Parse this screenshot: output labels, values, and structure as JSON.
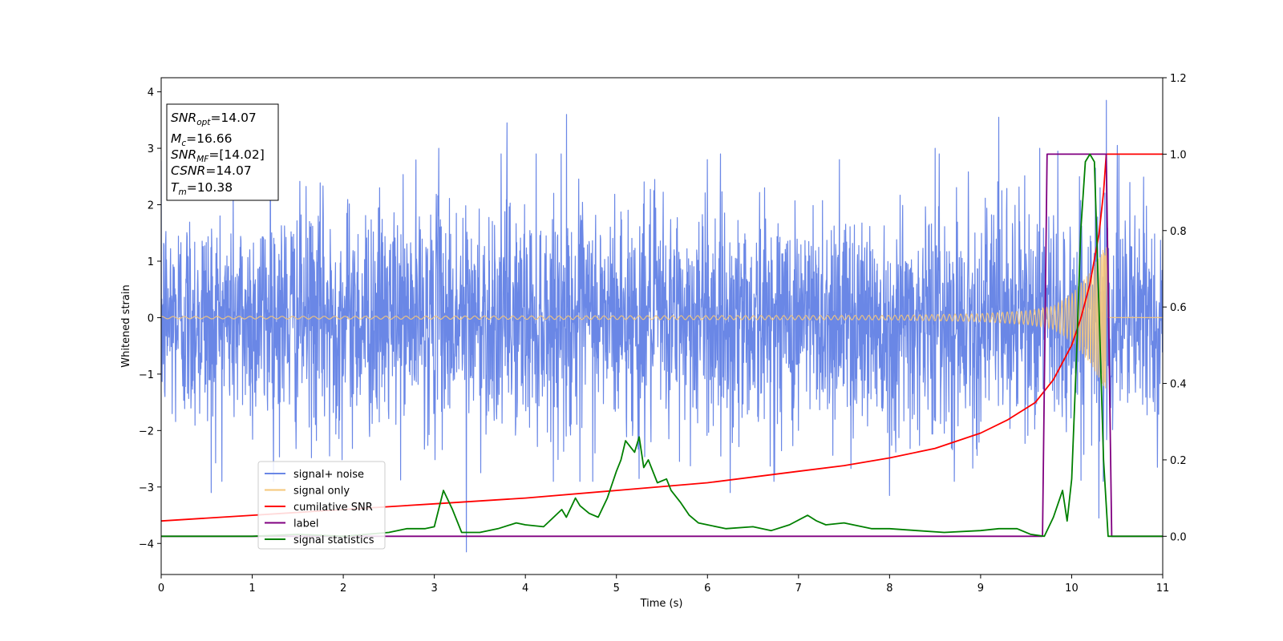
{
  "chart_data": {
    "type": "line",
    "xlabel": "Time (s)",
    "ylabel": "Whitened strain",
    "xlim": [
      0,
      11
    ],
    "ylim": [
      -4.55,
      4.25
    ],
    "y2lim": [
      -0.1,
      1.2
    ],
    "x_ticks": [
      "0",
      "1",
      "2",
      "3",
      "4",
      "5",
      "6",
      "7",
      "8",
      "9",
      "10",
      "11"
    ],
    "y_ticks": [
      "4",
      "3",
      "2",
      "1",
      "0",
      "−1",
      "−2",
      "−3",
      "−4"
    ],
    "y2_ticks": [
      "1.2",
      "1.0",
      "0.8",
      "0.6",
      "0.4",
      "0.2",
      "0.0"
    ],
    "grid": false,
    "legend_position": "lower-left",
    "annotation": {
      "lines": [
        {
          "base": "SNR",
          "sub": "opt",
          "value": "=14.07"
        },
        {
          "base": "M",
          "sub": "c",
          "value": "=16.66"
        },
        {
          "base": "SNR",
          "sub": "MF",
          "value": "=[14.02]"
        },
        {
          "base": "CSNR",
          "sub": "",
          "value": "=14.07"
        },
        {
          "base": "T",
          "sub": "m",
          "value": "=10.38"
        }
      ]
    },
    "series": [
      {
        "name": "signal+ noise",
        "color": "#6a87e6",
        "axis": "left",
        "kind": "noise",
        "envelope": {
          "max_abs_typical": 2.6,
          "peaks": [
            [
              0.55,
              -3.1
            ],
            [
              1.2,
              3.45
            ],
            [
              1.85,
              -2.45
            ],
            [
              2.4,
              2.3
            ],
            [
              3.05,
              3.0
            ],
            [
              3.35,
              -4.15
            ],
            [
              3.8,
              3.45
            ],
            [
              4.45,
              3.6
            ],
            [
              4.6,
              -2.9
            ],
            [
              5.25,
              -2.85
            ],
            [
              6.0,
              2.8
            ],
            [
              6.25,
              -3.1
            ],
            [
              7.45,
              2.8
            ],
            [
              8.0,
              -3.15
            ],
            [
              8.5,
              3.0
            ],
            [
              9.2,
              3.55
            ],
            [
              9.65,
              3.0
            ],
            [
              9.85,
              2.95
            ],
            [
              10.38,
              3.85
            ],
            [
              10.5,
              3.05
            ],
            [
              10.3,
              -3.55
            ]
          ]
        }
      },
      {
        "name": "signal only",
        "color": "#f5c77a",
        "axis": "left",
        "kind": "chirp",
        "t_merger": 10.38,
        "amp_env_x": [
          0,
          8,
          9,
          9.5,
          9.8,
          10.0,
          10.2,
          10.38,
          10.4
        ],
        "amp_env_y": [
          0.02,
          0.04,
          0.07,
          0.12,
          0.2,
          0.42,
          0.8,
          1.3,
          0
        ]
      },
      {
        "name": "cumilative SNR",
        "color": "#ff0000",
        "axis": "right",
        "x": [
          0,
          1,
          2,
          3,
          4,
          5,
          6,
          7,
          7.5,
          8,
          8.5,
          9,
          9.3,
          9.6,
          9.8,
          10.0,
          10.1,
          10.2,
          10.3,
          10.35,
          10.38,
          10.4,
          11
        ],
        "y": [
          0.04,
          0.055,
          0.07,
          0.085,
          0.1,
          0.12,
          0.14,
          0.17,
          0.185,
          0.205,
          0.23,
          0.27,
          0.305,
          0.35,
          0.41,
          0.5,
          0.57,
          0.66,
          0.79,
          0.9,
          1.0,
          1.0,
          1.0
        ]
      },
      {
        "name": "label",
        "color": "#800080",
        "axis": "right",
        "x": [
          0,
          9.68,
          9.73,
          10.38,
          10.44,
          11
        ],
        "y": [
          0,
          0,
          1,
          1,
          0,
          0
        ]
      },
      {
        "name": "signal statistics",
        "color": "#008000",
        "axis": "right",
        "x": [
          0,
          0.5,
          1.0,
          1.5,
          2.0,
          2.5,
          2.7,
          2.9,
          3.0,
          3.1,
          3.2,
          3.3,
          3.4,
          3.5,
          3.7,
          3.9,
          4.0,
          4.2,
          4.4,
          4.45,
          4.55,
          4.6,
          4.7,
          4.8,
          4.9,
          5.0,
          5.05,
          5.1,
          5.2,
          5.25,
          5.3,
          5.35,
          5.45,
          5.55,
          5.6,
          5.7,
          5.8,
          5.9,
          6.0,
          6.2,
          6.5,
          6.7,
          6.9,
          7.1,
          7.2,
          7.3,
          7.5,
          7.8,
          8.0,
          8.3,
          8.6,
          9.0,
          9.2,
          9.4,
          9.55,
          9.7,
          9.8,
          9.9,
          9.95,
          10.0,
          10.05,
          10.1,
          10.15,
          10.2,
          10.25,
          10.3,
          10.35,
          10.4,
          10.45,
          11
        ],
        "y": [
          0,
          0.0,
          0.0,
          0.005,
          0.0,
          0.01,
          0.02,
          0.02,
          0.025,
          0.12,
          0.07,
          0.01,
          0.01,
          0.01,
          0.02,
          0.035,
          0.03,
          0.025,
          0.07,
          0.05,
          0.1,
          0.08,
          0.06,
          0.05,
          0.1,
          0.17,
          0.2,
          0.25,
          0.22,
          0.26,
          0.18,
          0.2,
          0.14,
          0.15,
          0.12,
          0.09,
          0.055,
          0.035,
          0.03,
          0.02,
          0.025,
          0.015,
          0.03,
          0.055,
          0.04,
          0.03,
          0.035,
          0.02,
          0.02,
          0.015,
          0.01,
          0.015,
          0.02,
          0.02,
          0.005,
          0.0,
          0.05,
          0.12,
          0.04,
          0.15,
          0.45,
          0.8,
          0.98,
          1.0,
          0.98,
          0.6,
          0.2,
          0.0,
          0.0,
          0.0
        ]
      }
    ]
  }
}
